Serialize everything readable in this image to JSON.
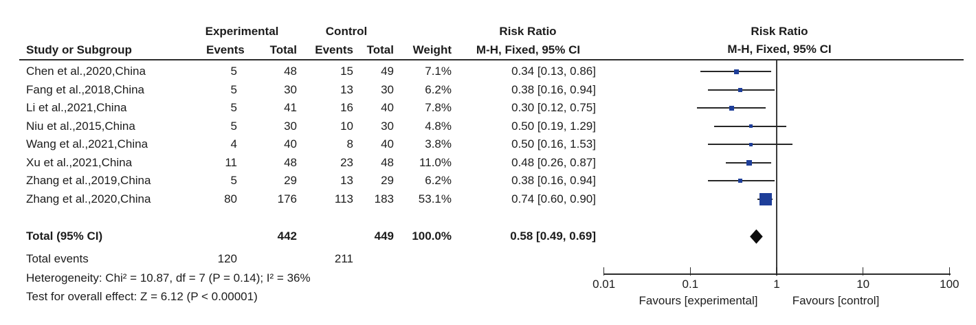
{
  "group_headers": {
    "experimental": "Experimental",
    "control": "Control",
    "risk_ratio_text_col": "Risk Ratio",
    "risk_ratio_plot_col": "Risk Ratio"
  },
  "column_headers": {
    "study": "Study or Subgroup",
    "events_exp": "Events",
    "total_exp": "Total",
    "events_ctl": "Events",
    "total_ctl": "Total",
    "weight": "Weight",
    "mh_text": "M-H, Fixed, 95% CI",
    "mh_plot": "M-H, Fixed, 95% CI"
  },
  "chart_data": {
    "type": "forest",
    "effect_measure": "Risk Ratio",
    "method": "M-H, Fixed, 95% CI",
    "x_scale": "log",
    "x_ticks": [
      0.01,
      0.1,
      1,
      10,
      100
    ],
    "x_tick_labels": [
      "0.01",
      "0.1",
      "1",
      "10",
      "100"
    ],
    "favours_left": "Favours [experimental]",
    "favours_right": "Favours [control]",
    "marker_color": "#1e3e99",
    "diamond_color": "#0d0d0d",
    "studies": [
      {
        "study": "Chen et al.,2020,China",
        "events_exp": "5",
        "total_exp": "48",
        "events_ctl": "15",
        "total_ctl": "49",
        "weight": "7.1%",
        "weight_pct": 7.1,
        "rr": 0.34,
        "ci_low": 0.13,
        "ci_high": 0.86,
        "estimate_text": "0.34 [0.13, 0.86]"
      },
      {
        "study": "Fang et al.,2018,China",
        "events_exp": "5",
        "total_exp": "30",
        "events_ctl": "13",
        "total_ctl": "30",
        "weight": "6.2%",
        "weight_pct": 6.2,
        "rr": 0.38,
        "ci_low": 0.16,
        "ci_high": 0.94,
        "estimate_text": "0.38 [0.16, 0.94]"
      },
      {
        "study": "Li et al.,2021,China",
        "events_exp": "5",
        "total_exp": "41",
        "events_ctl": "16",
        "total_ctl": "40",
        "weight": "7.8%",
        "weight_pct": 7.8,
        "rr": 0.3,
        "ci_low": 0.12,
        "ci_high": 0.75,
        "estimate_text": "0.30 [0.12, 0.75]"
      },
      {
        "study": "Niu et al.,2015,China",
        "events_exp": "5",
        "total_exp": "30",
        "events_ctl": "10",
        "total_ctl": "30",
        "weight": "4.8%",
        "weight_pct": 4.8,
        "rr": 0.5,
        "ci_low": 0.19,
        "ci_high": 1.29,
        "estimate_text": "0.50 [0.19, 1.29]"
      },
      {
        "study": "Wang et al.,2021,China",
        "events_exp": "4",
        "total_exp": "40",
        "events_ctl": "8",
        "total_ctl": "40",
        "weight": "3.8%",
        "weight_pct": 3.8,
        "rr": 0.5,
        "ci_low": 0.16,
        "ci_high": 1.53,
        "estimate_text": "0.50 [0.16, 1.53]"
      },
      {
        "study": "Xu et al.,2021,China",
        "events_exp": "11",
        "total_exp": "48",
        "events_ctl": "23",
        "total_ctl": "48",
        "weight": "11.0%",
        "weight_pct": 11.0,
        "rr": 0.48,
        "ci_low": 0.26,
        "ci_high": 0.87,
        "estimate_text": "0.48 [0.26, 0.87]"
      },
      {
        "study": "Zhang et al.,2019,China",
        "events_exp": "5",
        "total_exp": "29",
        "events_ctl": "13",
        "total_ctl": "29",
        "weight": "6.2%",
        "weight_pct": 6.2,
        "rr": 0.38,
        "ci_low": 0.16,
        "ci_high": 0.94,
        "estimate_text": "0.38 [0.16, 0.94]"
      },
      {
        "study": "Zhang et al.,2020,China",
        "events_exp": "80",
        "total_exp": "176",
        "events_ctl": "113",
        "total_ctl": "183",
        "weight": "53.1%",
        "weight_pct": 53.1,
        "rr": 0.74,
        "ci_low": 0.6,
        "ci_high": 0.9,
        "estimate_text": "0.74 [0.60, 0.90]"
      }
    ],
    "total": {
      "label": "Total (95% CI)",
      "total_exp": "442",
      "total_ctl": "449",
      "weight": "100.0%",
      "rr": 0.58,
      "ci_low": 0.49,
      "ci_high": 0.69,
      "estimate_text": "0.58 [0.49, 0.69]"
    },
    "total_events": {
      "label": "Total events",
      "exp": "120",
      "ctl": "211"
    },
    "heterogeneity": "Heterogeneity: Chi² = 10.87, df = 7 (P = 0.14); I² = 36%",
    "overall_effect": "Test for overall effect: Z = 6.12 (P < 0.00001)"
  }
}
